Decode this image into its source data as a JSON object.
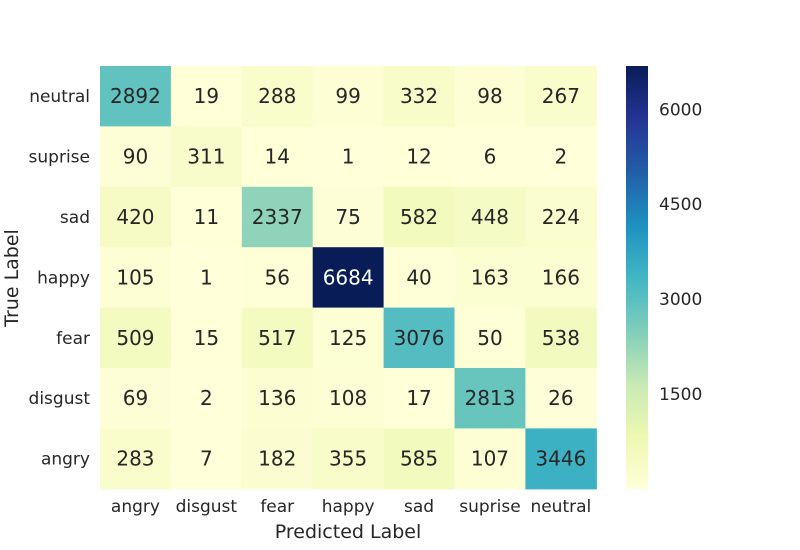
{
  "chart_data": {
    "type": "heatmap",
    "title": "",
    "xlabel": "Predicted Label",
    "ylabel": "True Label",
    "x_categories": [
      "angry",
      "disgust",
      "fear",
      "happy",
      "sad",
      "suprise",
      "neutral"
    ],
    "y_categories": [
      "neutral",
      "suprise",
      "sad",
      "happy",
      "fear",
      "disgust",
      "angry"
    ],
    "values": [
      [
        2892,
        19,
        288,
        99,
        332,
        98,
        267
      ],
      [
        90,
        311,
        14,
        1,
        12,
        6,
        2
      ],
      [
        420,
        11,
        2337,
        75,
        582,
        448,
        224
      ],
      [
        105,
        1,
        56,
        6684,
        40,
        163,
        166
      ],
      [
        509,
        15,
        517,
        125,
        3076,
        50,
        538
      ],
      [
        69,
        2,
        136,
        108,
        17,
        2813,
        26
      ],
      [
        283,
        7,
        182,
        355,
        585,
        107,
        3446
      ]
    ],
    "colormap": "YlGnBu",
    "colormap_stops": [
      "#ffffd9",
      "#edf8b1",
      "#c7e9b4",
      "#7fcdbb",
      "#41b6c4",
      "#1d91c0",
      "#225ea8",
      "#253494",
      "#081d58"
    ],
    "color_range": [
      0,
      6684
    ],
    "colorbar_ticks": [
      1500,
      3000,
      4500,
      6000
    ],
    "grid": false
  }
}
